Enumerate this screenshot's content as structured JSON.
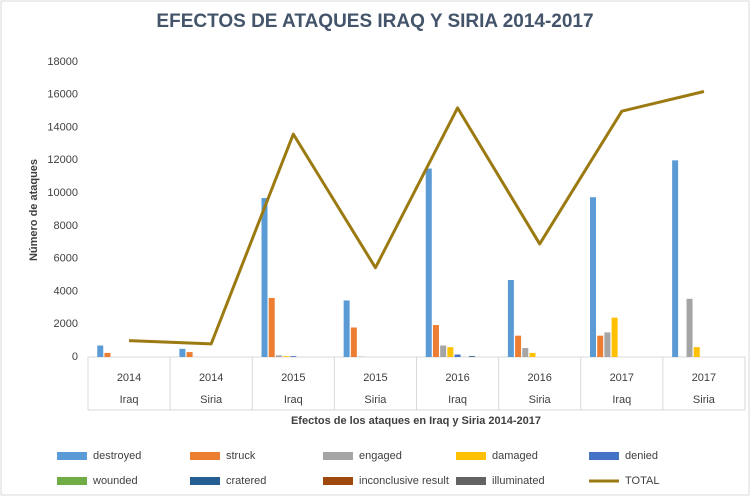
{
  "chart_data": {
    "type": "bar",
    "title": "EFECTOS DE ATAQUES IRAQ Y SIRIA 2014-2017",
    "x_label": "Efectos de los ataques en Iraq y Siria 2014-2017",
    "y_label": "Número de ataques",
    "categories": [
      "2014",
      "2014",
      "2015",
      "2015",
      "2016",
      "2016",
      "2017",
      "2017"
    ],
    "subcategories": [
      "Iraq",
      "Siria",
      "Iraq",
      "Siria",
      "Iraq",
      "Siria",
      "Iraq",
      "Siria"
    ],
    "ylim": [
      0,
      18000
    ],
    "yticks": [
      0,
      2000,
      4000,
      6000,
      8000,
      10000,
      12000,
      14000,
      16000,
      18000
    ],
    "grid": false,
    "legend": "bottom",
    "series": [
      {
        "name": "destroyed",
        "color": "#5b9bd5",
        "values": [
          700,
          500,
          9700,
          3450,
          11500,
          4700,
          9750,
          12000
        ]
      },
      {
        "name": "struck",
        "color": "#ed7d31",
        "values": [
          250,
          300,
          3600,
          1800,
          1950,
          1300,
          1300,
          0
        ]
      },
      {
        "name": "engaged",
        "color": "#a5a5a5",
        "values": [
          0,
          0,
          100,
          20,
          700,
          550,
          1500,
          3550
        ]
      },
      {
        "name": "damaged",
        "color": "#ffc000",
        "values": [
          0,
          0,
          50,
          0,
          600,
          250,
          2400,
          600
        ]
      },
      {
        "name": "denied",
        "color": "#4472c4",
        "values": [
          0,
          0,
          50,
          0,
          150,
          0,
          0,
          0
        ]
      },
      {
        "name": "wounded",
        "color": "#70ad47",
        "values": [
          0,
          0,
          0,
          0,
          0,
          0,
          0,
          0
        ]
      },
      {
        "name": "cratered",
        "color": "#255e91",
        "values": [
          0,
          0,
          0,
          0,
          50,
          0,
          0,
          0
        ]
      },
      {
        "name": "inconclusive result",
        "color": "#9e480e",
        "values": [
          0,
          0,
          0,
          0,
          0,
          0,
          0,
          0
        ]
      },
      {
        "name": "illuminated",
        "color": "#636363",
        "values": [
          0,
          0,
          0,
          0,
          0,
          0,
          0,
          0
        ]
      },
      {
        "name": "TOTAL",
        "color": "#9c7a12",
        "type": "line",
        "values": [
          1000,
          800,
          13600,
          5450,
          15200,
          6900,
          15000,
          16200
        ]
      }
    ]
  }
}
